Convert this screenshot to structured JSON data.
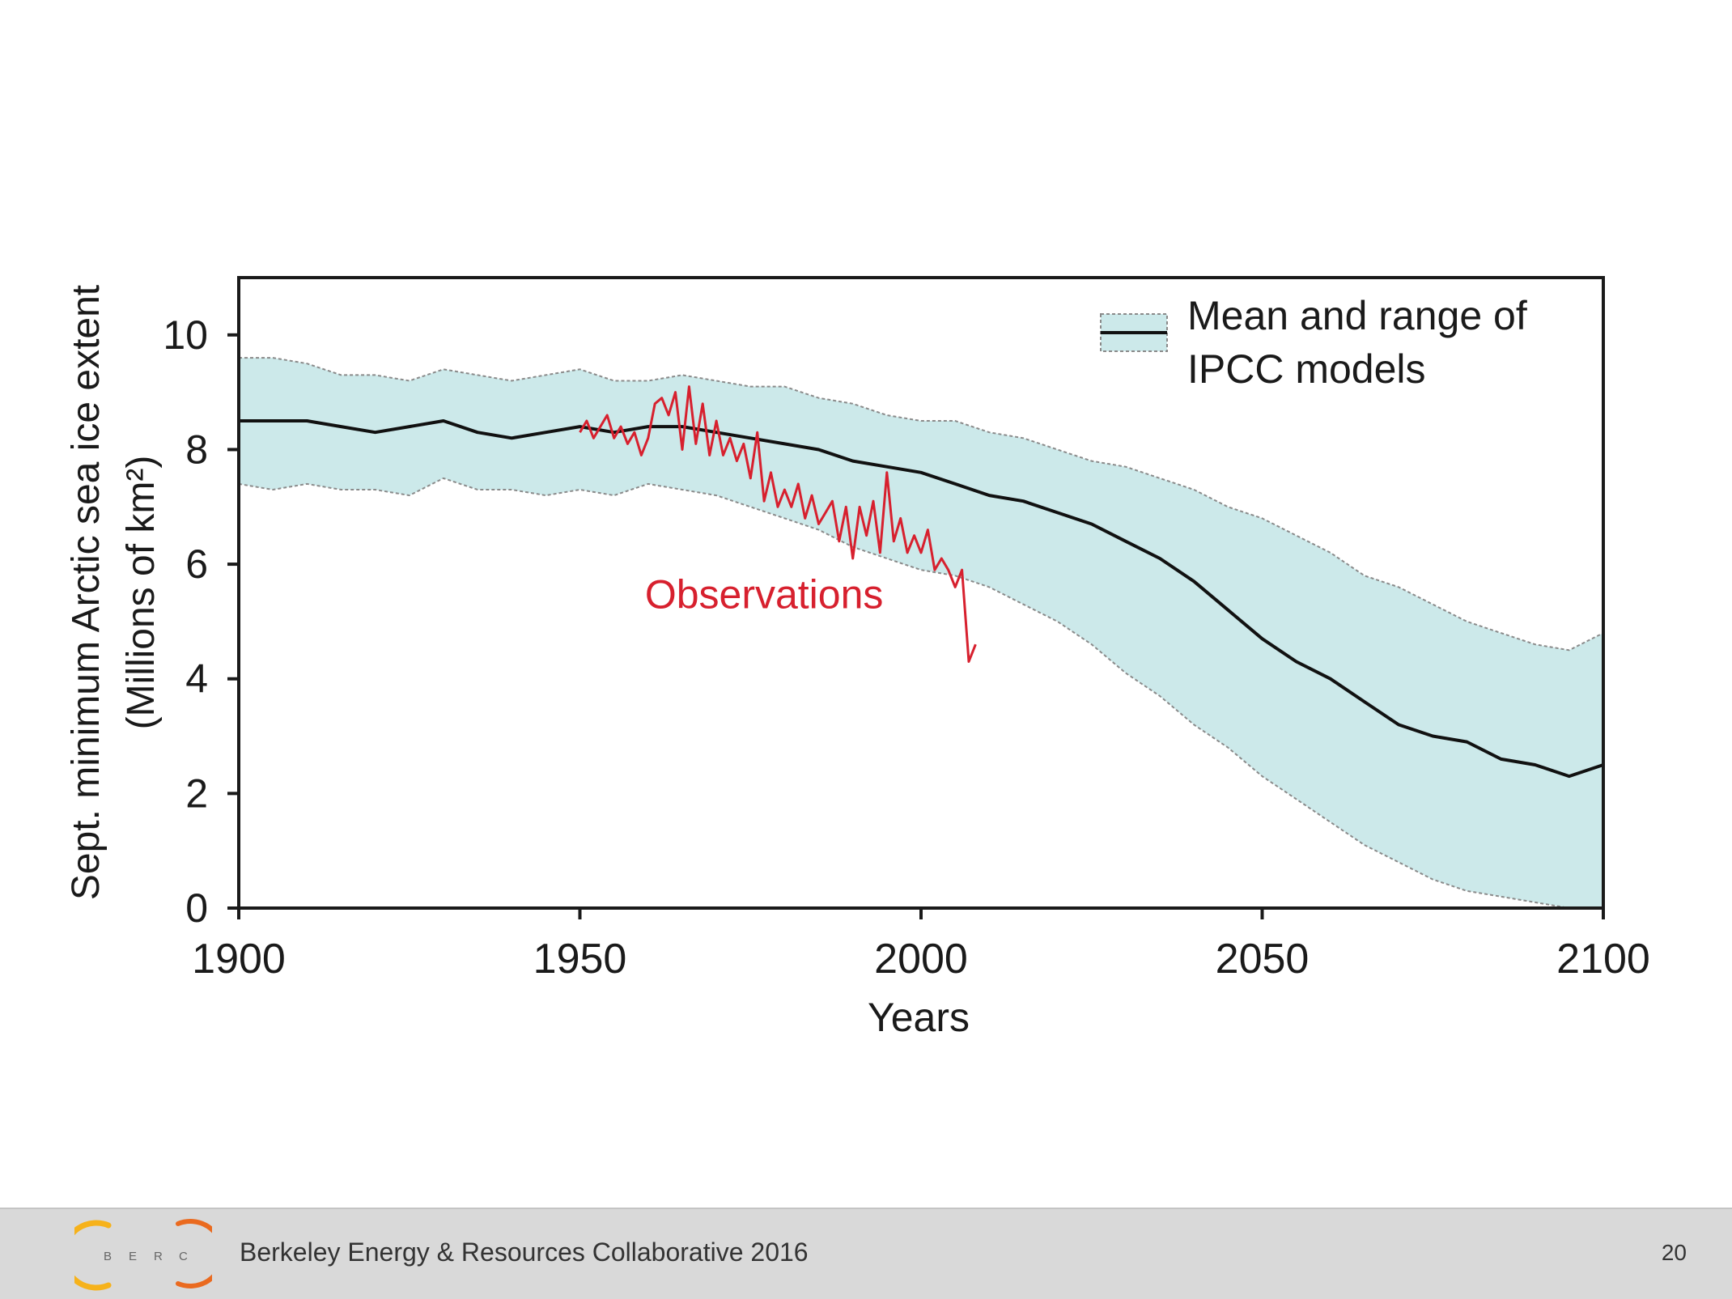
{
  "chart_data": {
    "type": "line",
    "title": "",
    "xlabel": "Years",
    "ylabel": "Sept. minimum Arctic sea ice extent",
    "ylabel_units": "(Millions of km²)",
    "xlim": [
      1900,
      2100
    ],
    "ylim": [
      0,
      11
    ],
    "x_ticks": [
      1900,
      1950,
      2000,
      2050,
      2100
    ],
    "y_ticks": [
      0,
      2,
      4,
      6,
      8,
      10
    ],
    "grid": false,
    "legend": {
      "position": "top-right",
      "label_line1": "Mean and range of",
      "label_line2": "IPCC models"
    },
    "annotations": [
      {
        "text": "Observations",
        "x": 1977,
        "y": 5.4,
        "color": "#d7202e"
      }
    ],
    "series": [
      {
        "name": "IPCC models mean",
        "color": "#111111",
        "x": [
          1900,
          1905,
          1910,
          1915,
          1920,
          1925,
          1930,
          1935,
          1940,
          1945,
          1950,
          1955,
          1960,
          1965,
          1970,
          1975,
          1980,
          1985,
          1990,
          1995,
          2000,
          2005,
          2010,
          2015,
          2020,
          2025,
          2030,
          2035,
          2040,
          2045,
          2050,
          2055,
          2060,
          2065,
          2070,
          2075,
          2080,
          2085,
          2090,
          2095,
          2100
        ],
        "values": [
          8.5,
          8.5,
          8.5,
          8.4,
          8.3,
          8.4,
          8.5,
          8.3,
          8.2,
          8.3,
          8.4,
          8.3,
          8.4,
          8.4,
          8.3,
          8.2,
          8.1,
          8.0,
          7.8,
          7.7,
          7.6,
          7.4,
          7.2,
          7.1,
          6.9,
          6.7,
          6.4,
          6.1,
          5.7,
          5.2,
          4.7,
          4.3,
          4.0,
          3.6,
          3.2,
          3.0,
          2.9,
          2.6,
          2.5,
          2.3,
          2.5
        ]
      },
      {
        "name": "IPCC models upper range",
        "color": "#888888",
        "x": [
          1900,
          1905,
          1910,
          1915,
          1920,
          1925,
          1930,
          1935,
          1940,
          1945,
          1950,
          1955,
          1960,
          1965,
          1970,
          1975,
          1980,
          1985,
          1990,
          1995,
          2000,
          2005,
          2010,
          2015,
          2020,
          2025,
          2030,
          2035,
          2040,
          2045,
          2050,
          2055,
          2060,
          2065,
          2070,
          2075,
          2080,
          2085,
          2090,
          2095,
          2100
        ],
        "values": [
          9.6,
          9.6,
          9.5,
          9.3,
          9.3,
          9.2,
          9.4,
          9.3,
          9.2,
          9.3,
          9.4,
          9.2,
          9.2,
          9.3,
          9.2,
          9.1,
          9.1,
          8.9,
          8.8,
          8.6,
          8.5,
          8.5,
          8.3,
          8.2,
          8.0,
          7.8,
          7.7,
          7.5,
          7.3,
          7.0,
          6.8,
          6.5,
          6.2,
          5.8,
          5.6,
          5.3,
          5.0,
          4.8,
          4.6,
          4.5,
          4.8
        ]
      },
      {
        "name": "IPCC models lower range",
        "color": "#888888",
        "x": [
          1900,
          1905,
          1910,
          1915,
          1920,
          1925,
          1930,
          1935,
          1940,
          1945,
          1950,
          1955,
          1960,
          1965,
          1970,
          1975,
          1980,
          1985,
          1990,
          1995,
          2000,
          2005,
          2010,
          2015,
          2020,
          2025,
          2030,
          2035,
          2040,
          2045,
          2050,
          2055,
          2060,
          2065,
          2070,
          2075,
          2080,
          2085,
          2090,
          2095,
          2100
        ],
        "values": [
          7.4,
          7.3,
          7.4,
          7.3,
          7.3,
          7.2,
          7.5,
          7.3,
          7.3,
          7.2,
          7.3,
          7.2,
          7.4,
          7.3,
          7.2,
          7.0,
          6.8,
          6.6,
          6.3,
          6.1,
          5.9,
          5.8,
          5.6,
          5.3,
          5.0,
          4.6,
          4.1,
          3.7,
          3.2,
          2.8,
          2.3,
          1.9,
          1.5,
          1.1,
          0.8,
          0.5,
          0.3,
          0.2,
          0.1,
          0.0,
          0.0
        ]
      },
      {
        "name": "Observations",
        "color": "#d7202e",
        "x": [
          1950,
          1951,
          1952,
          1953,
          1954,
          1955,
          1956,
          1957,
          1958,
          1959,
          1960,
          1961,
          1962,
          1963,
          1964,
          1965,
          1966,
          1967,
          1968,
          1969,
          1970,
          1971,
          1972,
          1973,
          1974,
          1975,
          1976,
          1977,
          1978,
          1979,
          1980,
          1981,
          1982,
          1983,
          1984,
          1985,
          1986,
          1987,
          1988,
          1989,
          1990,
          1991,
          1992,
          1993,
          1994,
          1995,
          1996,
          1997,
          1998,
          1999,
          2000,
          2001,
          2002,
          2003,
          2004,
          2005,
          2006,
          2007,
          2008
        ],
        "values": [
          8.3,
          8.5,
          8.2,
          8.4,
          8.6,
          8.2,
          8.4,
          8.1,
          8.3,
          7.9,
          8.2,
          8.8,
          8.9,
          8.6,
          9.0,
          8.0,
          9.1,
          8.1,
          8.8,
          7.9,
          8.5,
          7.9,
          8.2,
          7.8,
          8.1,
          7.5,
          8.3,
          7.1,
          7.6,
          7.0,
          7.3,
          7.0,
          7.4,
          6.8,
          7.2,
          6.7,
          6.9,
          7.1,
          6.4,
          7.0,
          6.1,
          7.0,
          6.5,
          7.1,
          6.2,
          7.6,
          6.4,
          6.8,
          6.2,
          6.5,
          6.2,
          6.6,
          5.9,
          6.1,
          5.9,
          5.6,
          5.9,
          4.3,
          4.6
        ]
      }
    ]
  },
  "footer": {
    "text": "Berkeley Energy & Resources Collaborative 2016",
    "page_number": "20",
    "logo_letters": [
      "B",
      "E",
      "R",
      "C"
    ]
  },
  "colors": {
    "band_fill": "#cce9ea",
    "band_edge": "#8a8a8a",
    "mean_line": "#111111",
    "observations": "#d7202e",
    "footer_bg": "#d9d9d9",
    "logo_orange": "#f28c1a"
  }
}
